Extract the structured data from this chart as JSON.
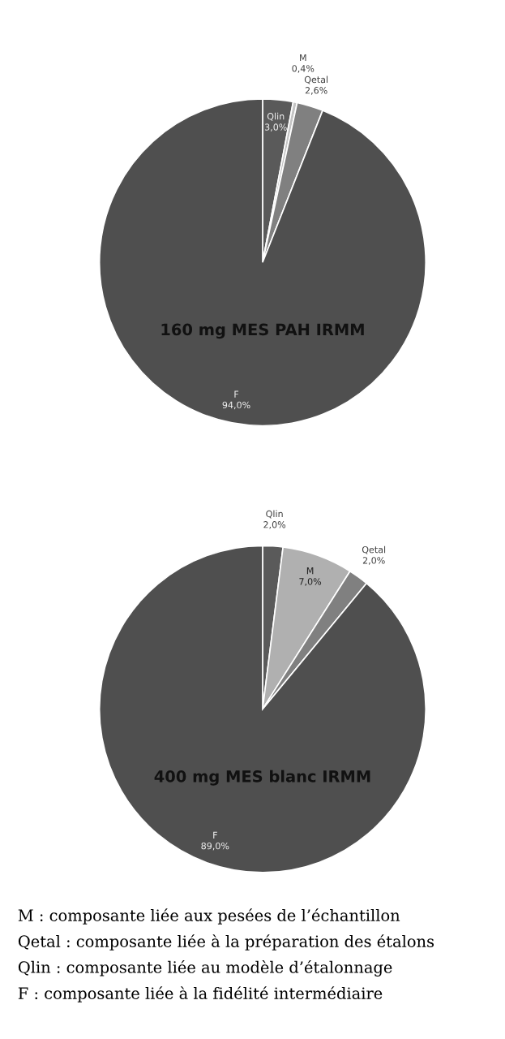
{
  "chart_data": [
    {
      "type": "pie",
      "title": "160 mg MES PAH IRMM",
      "categories": [
        "Qlin",
        "M",
        "Qetal",
        "F"
      ],
      "values": [
        3.0,
        0.4,
        2.6,
        94.0
      ],
      "value_labels": [
        "3,0%",
        "0,4%",
        "2,6%",
        "94,0%"
      ],
      "colors": [
        "#5a5a5a",
        "#c4c4c4",
        "#808080",
        "#4f4f4f"
      ]
    },
    {
      "type": "pie",
      "title": "400 mg MES blanc IRMM",
      "categories": [
        "Qlin",
        "M",
        "Qetal",
        "F"
      ],
      "values": [
        2.0,
        7.0,
        2.0,
        89.0
      ],
      "value_labels": [
        "2,0%",
        "7,0%",
        "2,0%",
        "89,0%"
      ],
      "colors": [
        "#5a5a5a",
        "#b0b0b0",
        "#808080",
        "#4f4f4f"
      ],
      "annotations": [
        "M : composante liée aux pesées de l’échantillon",
        "Qetal : composante liée à la préparation des étalons",
        "Qlin : composante liée au modèle d’étalonnage",
        "F : composante liée à la fidélité intermédiaire"
      ]
    }
  ]
}
